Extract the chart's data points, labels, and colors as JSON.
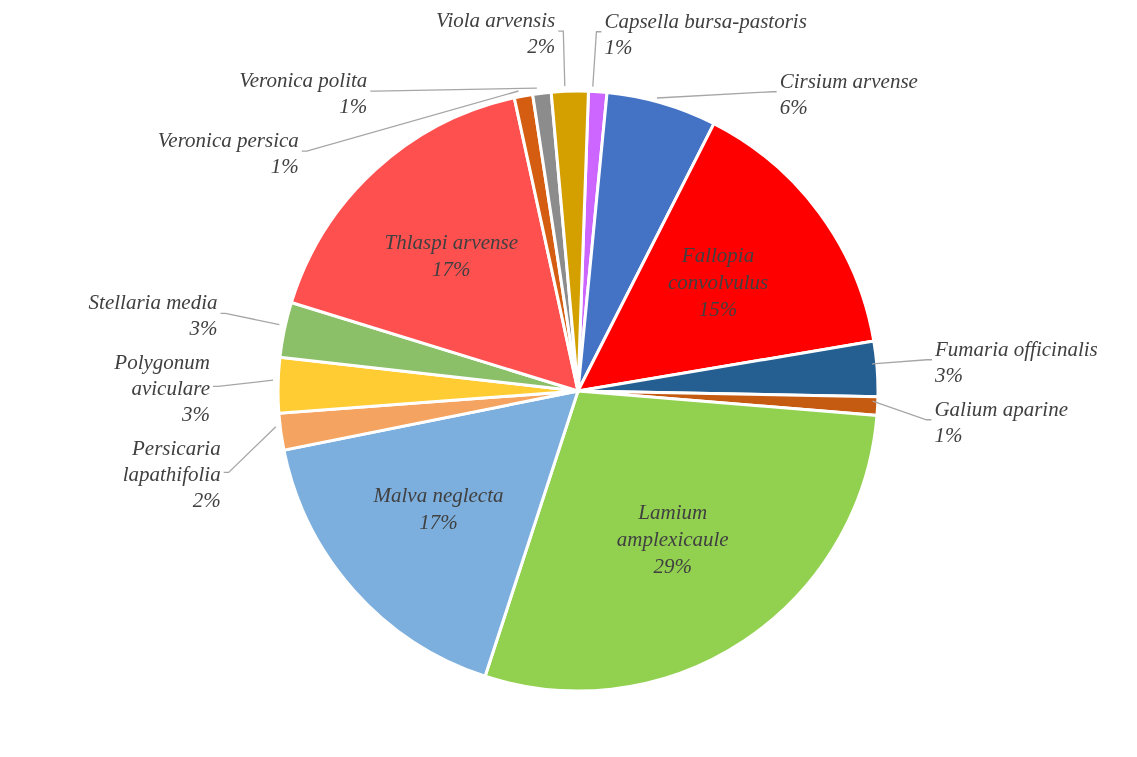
{
  "chart_data": {
    "type": "pie",
    "categories": [
      "Capsella bursa-pastoris",
      "Cirsium arvense",
      "Fallopia convolvulus",
      "Fumaria officinalis",
      "Galium aparine",
      "Lamium amplexicaule",
      "Malva neglecta",
      "Persicaria lapathifolia",
      "Polygonum aviculare",
      "Stellaria media",
      "Thlaspi arvense",
      "Veronica persica",
      "Veronica polita",
      "Viola arvensis"
    ],
    "values": [
      1,
      6,
      15,
      3,
      1,
      29,
      17,
      2,
      3,
      3,
      17,
      1,
      1,
      2
    ],
    "colors": [
      "#cc66ff",
      "#4472c4",
      "#ff0000",
      "#255e91",
      "#c55a11",
      "#92d050",
      "#7cafdd",
      "#f4a460",
      "#ffcd33",
      "#8cc068",
      "#ff5050",
      "#d45d12",
      "#8c8c8c",
      "#d4a000"
    ],
    "value_labels": [
      "1%",
      "6%",
      "15%",
      "3%",
      "1%",
      "29%",
      "17%",
      "2%",
      "3%",
      "3%",
      "17%",
      "1%",
      "1%",
      "2%"
    ],
    "legend": false
  }
}
